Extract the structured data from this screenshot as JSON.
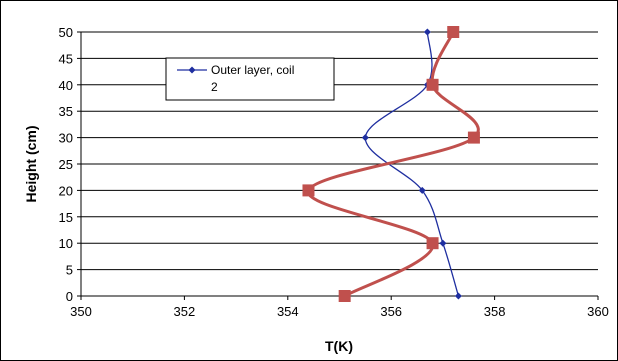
{
  "chart_data": {
    "type": "line",
    "xlabel": "T(K)",
    "ylabel": "Height (cm)",
    "xlim": [
      350,
      360
    ],
    "ylim": [
      0,
      50
    ],
    "x_ticks": [
      350,
      352,
      354,
      356,
      358,
      360
    ],
    "y_ticks": [
      0,
      5,
      10,
      15,
      20,
      25,
      30,
      35,
      40,
      45,
      50
    ],
    "grid": "horizontal",
    "legend_position": "top-left",
    "series": [
      {
        "name": "Outer layer, coil\n2",
        "legend_line1": "Outer layer, coil",
        "legend_line2": "2",
        "color": "#1f2fa0",
        "marker": "diamond",
        "points": [
          {
            "x": 357.3,
            "y": 0
          },
          {
            "x": 357.0,
            "y": 10
          },
          {
            "x": 356.6,
            "y": 20
          },
          {
            "x": 355.5,
            "y": 30
          },
          {
            "x": 356.7,
            "y": 40
          },
          {
            "x": 356.7,
            "y": 50
          }
        ]
      },
      {
        "name": "",
        "color": "#c0504d",
        "marker": "square",
        "points": [
          {
            "x": 355.1,
            "y": 0
          },
          {
            "x": 356.8,
            "y": 10
          },
          {
            "x": 354.4,
            "y": 20
          },
          {
            "x": 357.6,
            "y": 30
          },
          {
            "x": 356.8,
            "y": 40
          },
          {
            "x": 357.2,
            "y": 50
          }
        ]
      }
    ]
  }
}
